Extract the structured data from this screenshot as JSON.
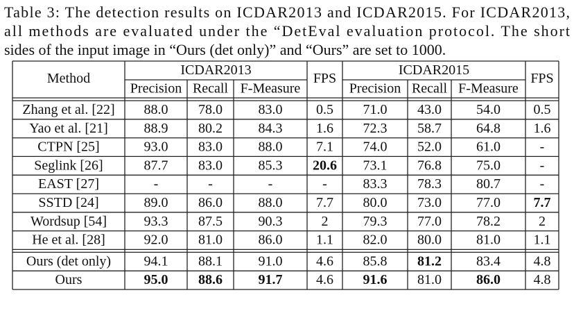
{
  "caption_lines": [
    "Table 3: The detection results on ICDAR2013 and ICDAR2015. For ICDAR2013,",
    "all methods are evaluated under the “DetEval evaluation protocol. The short",
    "sides of the input image in “Ours (det only)” and “Ours” are set to 1000."
  ],
  "table": {
    "header": {
      "method": "Method",
      "groups": [
        {
          "name": "ICDAR2013",
          "columns": [
            "Precision",
            "Recall",
            "F-Measure"
          ],
          "fps": "FPS"
        },
        {
          "name": "ICDAR2015",
          "columns": [
            "Precision",
            "Recall",
            "F-Measure"
          ],
          "fps": "FPS"
        }
      ]
    },
    "rows": [
      {
        "method": "Zhang et al. [22]",
        "cells": [
          "88.0",
          "78.0",
          "83.0",
          "0.5",
          "71.0",
          "43.0",
          "54.0",
          "0.5"
        ],
        "bold": []
      },
      {
        "method": "Yao et al. [21]",
        "cells": [
          "88.9",
          "80.2",
          "84.3",
          "1.6",
          "72.3",
          "58.7",
          "64.8",
          "1.6"
        ],
        "bold": []
      },
      {
        "method": "CTPN [25]",
        "cells": [
          "93.0",
          "83.0",
          "88.0",
          "7.1",
          "74.0",
          "52.0",
          "61.0",
          "-"
        ],
        "bold": []
      },
      {
        "method": "Seglink [26]",
        "cells": [
          "87.7",
          "83.0",
          "85.3",
          "20.6",
          "73.1",
          "76.8",
          "75.0",
          "-"
        ],
        "bold": [
          3
        ]
      },
      {
        "method": "EAST [27]",
        "cells": [
          "-",
          "-",
          "-",
          "-",
          "83.3",
          "78.3",
          "80.7",
          "-"
        ],
        "bold": []
      },
      {
        "method": "SSTD [24]",
        "cells": [
          "89.0",
          "86.0",
          "88.0",
          "7.7",
          "80.0",
          "73.0",
          "77.0",
          "7.7"
        ],
        "bold": [
          7
        ]
      },
      {
        "method": "Wordsup [54]",
        "cells": [
          "93.3",
          "87.5",
          "90.3",
          "2",
          "79.3",
          "77.0",
          "78.2",
          "2"
        ],
        "bold": []
      },
      {
        "method": "He et al. [28]",
        "cells": [
          "92.0",
          "81.0",
          "86.0",
          "1.1",
          "82.0",
          "80.0",
          "81.0",
          "1.1"
        ],
        "bold": []
      },
      {
        "method": "Ours (det only)",
        "cells": [
          "94.1",
          "88.1",
          "91.0",
          "4.6",
          "85.8",
          "81.2",
          "83.4",
          "4.8"
        ],
        "bold": [
          5
        ]
      },
      {
        "method": "Ours",
        "cells": [
          "95.0",
          "88.6",
          "91.7",
          "4.6",
          "91.6",
          "81.0",
          "86.0",
          "4.8"
        ],
        "bold": [
          0,
          1,
          2,
          4,
          6
        ]
      }
    ],
    "separator_before": 8
  }
}
